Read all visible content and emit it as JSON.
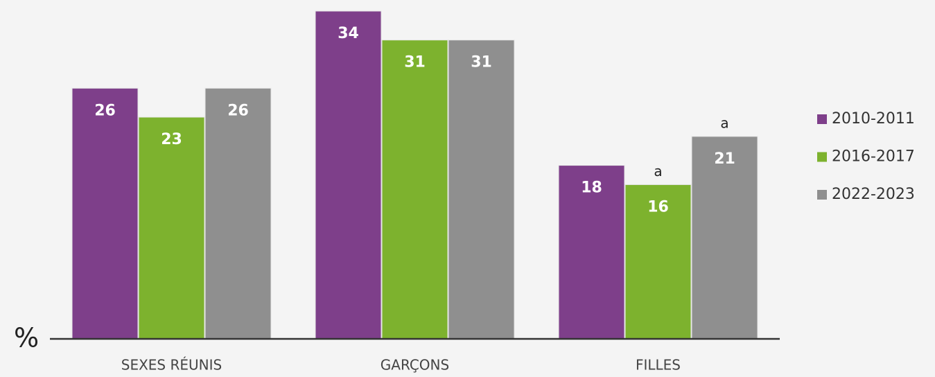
{
  "chart_data": {
    "type": "bar",
    "y_label": "%",
    "categories": [
      "SEXES RÉUNIS",
      "GARÇONS",
      "FILLES"
    ],
    "series": [
      {
        "name": "2010-2011",
        "color": "#7e3f8a",
        "values": [
          26,
          34,
          18
        ]
      },
      {
        "name": "2016-2017",
        "color": "#7db22e",
        "values": [
          23,
          31,
          16
        ],
        "annotations": [
          null,
          null,
          "a"
        ]
      },
      {
        "name": "2022-2023",
        "color": "#8f8f8f",
        "values": [
          26,
          31,
          21
        ],
        "annotations": [
          null,
          null,
          "a"
        ]
      }
    ],
    "ylim": [
      0,
      34
    ],
    "legend": "right"
  }
}
